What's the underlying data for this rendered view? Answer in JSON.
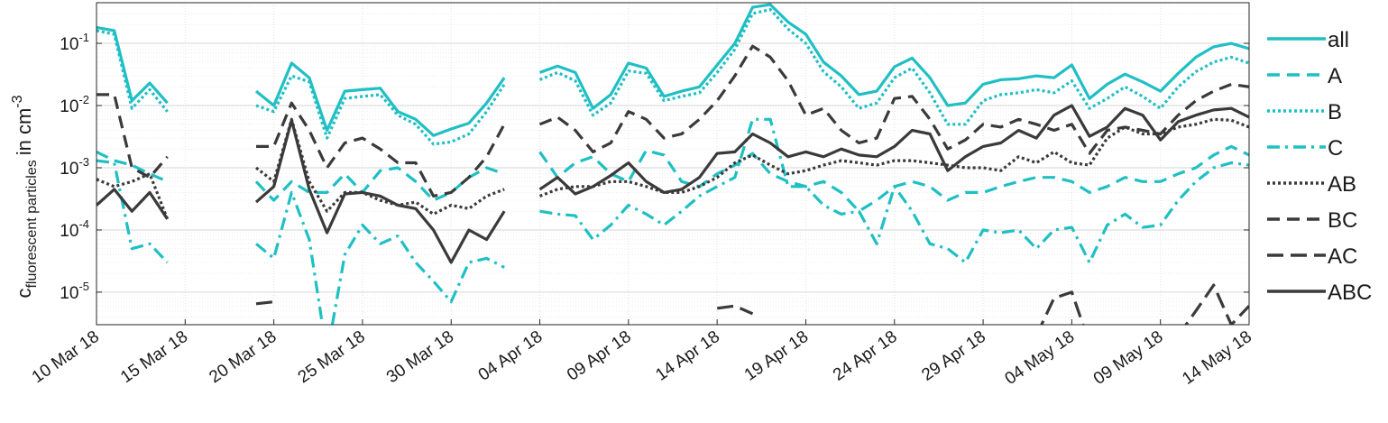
{
  "chart_data": {
    "type": "line",
    "title": "",
    "xlabel": "",
    "ylabel": {
      "base": "c",
      "subscript": "fluorescent particles",
      "suffix": "in cm",
      "exponent": "-3"
    },
    "yscale": "log",
    "ylim": [
      3e-06,
      0.45
    ],
    "xlim": [
      "2018-03-10",
      "2018-05-14"
    ],
    "grid": true,
    "legend_position": "right",
    "x_ticks": [
      "10 Mar 18",
      "15 Mar 18",
      "20 Mar 18",
      "25 Mar 18",
      "30 Mar 18",
      "04 Apr 18",
      "09 Apr 18",
      "14 Apr 18",
      "19 Apr 18",
      "24 Apr 18",
      "29 Apr 18",
      "04 May 18",
      "09 May 18",
      "14 May 18"
    ],
    "y_ticks": [
      {
        "value": 1e-05,
        "base": "10",
        "exp": "-5"
      },
      {
        "value": 0.0001,
        "base": "10",
        "exp": "-4"
      },
      {
        "value": 0.001,
        "base": "10",
        "exp": "-3"
      },
      {
        "value": 0.01,
        "base": "10",
        "exp": "-2"
      },
      {
        "value": 0.1,
        "base": "10",
        "exp": "-1"
      }
    ],
    "colors": {
      "cyan": "#1fbfc4",
      "gray": "#3a3a3a"
    },
    "x": [
      "2018-03-10",
      "2018-03-11",
      "2018-03-12",
      "2018-03-13",
      "2018-03-14",
      "2018-03-15",
      "2018-03-16",
      "2018-03-17",
      "2018-03-18",
      "2018-03-19",
      "2018-03-20",
      "2018-03-21",
      "2018-03-22",
      "2018-03-23",
      "2018-03-24",
      "2018-03-25",
      "2018-03-26",
      "2018-03-27",
      "2018-03-28",
      "2018-03-29",
      "2018-03-30",
      "2018-03-31",
      "2018-04-01",
      "2018-04-02",
      "2018-04-03",
      "2018-04-04",
      "2018-04-05",
      "2018-04-06",
      "2018-04-07",
      "2018-04-08",
      "2018-04-09",
      "2018-04-10",
      "2018-04-11",
      "2018-04-12",
      "2018-04-13",
      "2018-04-14",
      "2018-04-15",
      "2018-04-16",
      "2018-04-17",
      "2018-04-18",
      "2018-04-19",
      "2018-04-20",
      "2018-04-21",
      "2018-04-22",
      "2018-04-23",
      "2018-04-24",
      "2018-04-25",
      "2018-04-26",
      "2018-04-27",
      "2018-04-28",
      "2018-04-29",
      "2018-04-30",
      "2018-05-01",
      "2018-05-02",
      "2018-05-03",
      "2018-05-04",
      "2018-05-05",
      "2018-05-06",
      "2018-05-07",
      "2018-05-08",
      "2018-05-09",
      "2018-05-10",
      "2018-05-11",
      "2018-05-12",
      "2018-05-13",
      "2018-05-14"
    ],
    "series": [
      {
        "name": "all",
        "color": "cyan",
        "dash": "solid",
        "values": [
          0.18,
          0.16,
          0.012,
          0.023,
          0.011,
          null,
          null,
          null,
          null,
          0.017,
          0.01,
          0.048,
          0.028,
          0.004,
          0.017,
          0.018,
          0.019,
          0.008,
          0.006,
          0.0033,
          0.0042,
          0.0052,
          0.011,
          0.028,
          null,
          0.034,
          0.043,
          0.034,
          0.009,
          0.015,
          0.048,
          0.04,
          0.014,
          0.017,
          0.02,
          0.045,
          0.1,
          0.38,
          0.42,
          0.22,
          0.14,
          0.05,
          0.03,
          0.015,
          0.017,
          0.042,
          0.058,
          0.028,
          0.01,
          0.011,
          0.022,
          0.026,
          0.027,
          0.03,
          0.028,
          0.045,
          0.013,
          0.022,
          0.032,
          0.024,
          0.017,
          0.033,
          0.06,
          0.088,
          0.1,
          0.082
        ]
      },
      {
        "name": "A",
        "color": "cyan",
        "dash": "dash",
        "values": [
          0.0018,
          0.0013,
          0.0011,
          0.0008,
          0.0006,
          null,
          null,
          null,
          null,
          0.0006,
          0.0003,
          0.0006,
          0.0004,
          0.0004,
          0.0008,
          0.0004,
          0.0009,
          0.001,
          0.0006,
          0.0003,
          0.0004,
          0.0007,
          0.001,
          0.0008,
          null,
          0.0018,
          0.0007,
          0.0012,
          0.0015,
          0.0008,
          0.0006,
          0.0019,
          0.0016,
          0.0006,
          0.0005,
          0.0008,
          0.0011,
          0.0017,
          0.0008,
          0.0006,
          0.0005,
          0.0006,
          0.0004,
          0.0002,
          0.0003,
          0.0005,
          0.0006,
          0.0005,
          0.0003,
          0.0004,
          0.0004,
          0.0005,
          0.0006,
          0.0007,
          0.0007,
          0.0006,
          0.0004,
          0.0005,
          0.0007,
          0.0006,
          0.0006,
          0.0008,
          0.001,
          0.0016,
          0.0022,
          0.0016
        ]
      },
      {
        "name": "B",
        "color": "cyan",
        "dash": "dot",
        "values": [
          0.16,
          0.14,
          0.009,
          0.018,
          0.008,
          null,
          null,
          null,
          null,
          0.01,
          0.008,
          0.03,
          0.024,
          0.003,
          0.013,
          0.014,
          0.015,
          0.007,
          0.005,
          0.0024,
          0.0026,
          0.0035,
          0.008,
          0.022,
          null,
          0.026,
          0.034,
          0.025,
          0.007,
          0.011,
          0.036,
          0.033,
          0.012,
          0.014,
          0.016,
          0.034,
          0.08,
          0.3,
          0.35,
          0.17,
          0.1,
          0.035,
          0.02,
          0.009,
          0.011,
          0.028,
          0.04,
          0.016,
          0.005,
          0.005,
          0.012,
          0.015,
          0.016,
          0.018,
          0.016,
          0.025,
          0.009,
          0.013,
          0.02,
          0.014,
          0.009,
          0.02,
          0.035,
          0.05,
          0.06,
          0.048
        ]
      },
      {
        "name": "C",
        "color": "cyan",
        "dash": "dashdot",
        "values": [
          0.0013,
          0.0012,
          5e-05,
          6e-05,
          3e-05,
          null,
          null,
          null,
          null,
          6e-05,
          3.5e-05,
          0.0004,
          7e-05,
          1e-06,
          4e-05,
          0.00012,
          6e-05,
          8e-05,
          3e-05,
          1.5e-05,
          7e-06,
          3e-05,
          3.5e-05,
          2.5e-05,
          null,
          0.0002,
          0.00018,
          0.00017,
          7e-05,
          0.00012,
          0.00025,
          0.00018,
          0.00012,
          0.0002,
          0.00035,
          0.0005,
          0.0007,
          0.006,
          0.006,
          0.0005,
          0.0005,
          0.00025,
          0.00018,
          0.0002,
          6e-05,
          0.0005,
          0.0002,
          6e-05,
          5e-05,
          3e-05,
          0.0001,
          9e-05,
          0.0001,
          5e-05,
          0.0001,
          0.00011,
          3e-05,
          0.00012,
          0.00018,
          0.00011,
          0.00012,
          0.0003,
          0.0006,
          0.001,
          0.0012,
          0.0011
        ]
      },
      {
        "name": "AB",
        "color": "gray",
        "dash": "dot",
        "values": [
          0.00065,
          0.0005,
          0.0006,
          0.0008,
          0.00015,
          null,
          null,
          null,
          null,
          0.001,
          0.0006,
          0.006,
          0.0006,
          0.0002,
          0.0004,
          0.0004,
          0.0003,
          0.00025,
          0.00028,
          0.00018,
          0.00025,
          0.00022,
          0.00035,
          0.00045,
          null,
          0.00035,
          0.00045,
          0.0005,
          0.0005,
          0.0006,
          0.0006,
          0.0005,
          0.0004,
          0.0004,
          0.0005,
          0.0007,
          0.0012,
          0.0016,
          0.0011,
          0.0008,
          0.0009,
          0.0011,
          0.0013,
          0.0012,
          0.0011,
          0.0013,
          0.0013,
          0.0012,
          0.0011,
          0.001,
          0.001,
          0.0009,
          0.0015,
          0.0012,
          0.0018,
          0.0012,
          0.0011,
          0.003,
          0.0045,
          0.0035,
          0.0035,
          0.0045,
          0.005,
          0.006,
          0.0058,
          0.0045
        ]
      },
      {
        "name": "BC",
        "color": "gray",
        "dash": "dash",
        "values": [
          0.015,
          0.015,
          0.001,
          0.0007,
          0.0015,
          null,
          null,
          null,
          null,
          0.0022,
          0.0022,
          0.011,
          0.004,
          0.001,
          0.0025,
          0.003,
          0.002,
          0.0012,
          0.0012,
          0.00035,
          0.0004,
          0.0007,
          0.0015,
          0.005,
          null,
          0.005,
          0.0065,
          0.004,
          0.0018,
          0.0025,
          0.008,
          0.006,
          0.003,
          0.0035,
          0.006,
          0.012,
          0.03,
          0.09,
          0.06,
          0.025,
          0.007,
          0.009,
          0.004,
          0.0025,
          0.003,
          0.013,
          0.014,
          0.006,
          0.002,
          0.0028,
          0.005,
          0.0045,
          0.006,
          0.005,
          0.004,
          0.005,
          0.0017,
          0.004,
          0.0045,
          0.004,
          0.0035,
          0.007,
          0.012,
          0.017,
          0.022,
          0.02
        ]
      },
      {
        "name": "AC",
        "color": "gray",
        "dash": "longdash",
        "values": [
          null,
          null,
          null,
          null,
          null,
          null,
          null,
          null,
          null,
          6.5e-06,
          7e-06,
          null,
          null,
          null,
          null,
          null,
          null,
          null,
          null,
          null,
          null,
          null,
          null,
          null,
          null,
          null,
          null,
          null,
          null,
          null,
          null,
          null,
          null,
          null,
          null,
          5.5e-06,
          6e-06,
          4.5e-06,
          null,
          null,
          null,
          null,
          null,
          null,
          null,
          null,
          null,
          null,
          null,
          null,
          null,
          null,
          null,
          2e-06,
          8e-06,
          1e-05,
          1.5e-06,
          null,
          null,
          null,
          null,
          2e-06,
          5e-06,
          1.3e-05,
          3e-06,
          6e-06
        ]
      },
      {
        "name": "ABC",
        "color": "gray",
        "dash": "solid",
        "values": [
          0.00025,
          0.00045,
          0.0002,
          0.0004,
          0.00015,
          null,
          null,
          null,
          null,
          0.00028,
          0.0005,
          0.0058,
          0.00045,
          9e-05,
          0.00038,
          0.0004,
          0.00035,
          0.00025,
          0.00022,
          0.0001,
          3e-05,
          0.0001,
          7e-05,
          0.0002,
          null,
          0.00045,
          0.0007,
          0.00038,
          0.0005,
          0.00075,
          0.0012,
          0.0006,
          0.0004,
          0.00045,
          0.0007,
          0.0017,
          0.0018,
          0.0035,
          0.0025,
          0.0015,
          0.0018,
          0.0015,
          0.002,
          0.0016,
          0.0015,
          0.0022,
          0.004,
          0.0035,
          0.0009,
          0.0015,
          0.0022,
          0.0025,
          0.004,
          0.003,
          0.007,
          0.01,
          0.0032,
          0.0045,
          0.009,
          0.007,
          0.0028,
          0.0055,
          0.007,
          0.0085,
          0.009,
          0.0065
        ]
      }
    ]
  }
}
